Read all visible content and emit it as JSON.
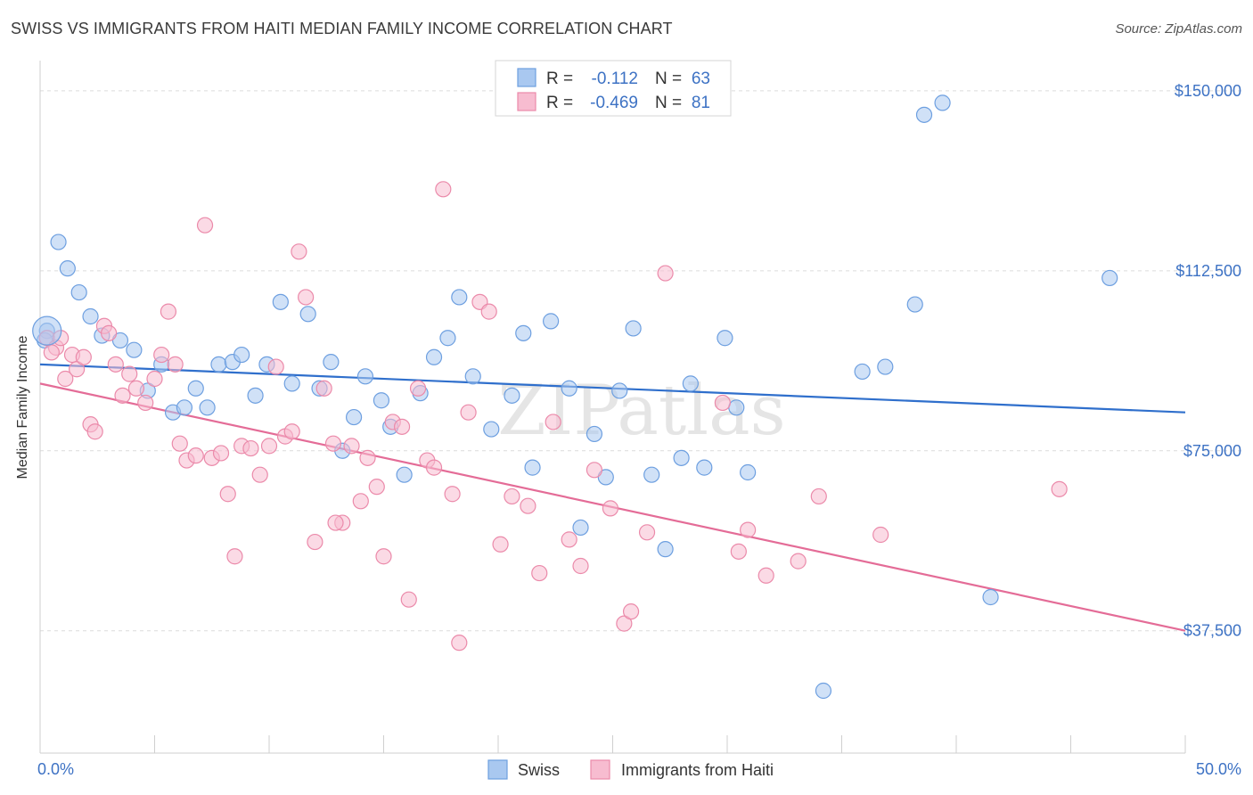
{
  "title": "SWISS VS IMMIGRANTS FROM HAITI MEDIAN FAMILY INCOME CORRELATION CHART",
  "source": "Source: ZipAtlas.com",
  "watermark": "ZIPatlas",
  "legend": {
    "rows": [
      {
        "r_label": "R =",
        "r_value": "-0.112",
        "n_label": "N =",
        "n_value": "63",
        "color": "#a9c8f0",
        "stroke": "#6d9fe0"
      },
      {
        "r_label": "R =",
        "r_value": "-0.469",
        "n_label": "N =",
        "n_value": "81",
        "color": "#f7bcd0",
        "stroke": "#eb8aaa"
      }
    ]
  },
  "bottom_legend": [
    {
      "label": "Swiss",
      "color": "#a9c8f0",
      "stroke": "#6d9fe0"
    },
    {
      "label": "Immigrants from Haiti",
      "color": "#f7bcd0",
      "stroke": "#eb8aaa"
    }
  ],
  "chart_data": {
    "type": "scatter",
    "title": "SWISS VS IMMIGRANTS FROM HAITI MEDIAN FAMILY INCOME CORRELATION CHART",
    "xlabel": "",
    "ylabel": "Median Family Income",
    "xlim": [
      0,
      50
    ],
    "ylim": [
      12000,
      155000
    ],
    "x_tick_labels": [
      "0.0%",
      "50.0%"
    ],
    "y_ticks": [
      37500,
      75000,
      112500,
      150000
    ],
    "y_tick_labels": [
      "$37,500",
      "$75,000",
      "$112,500",
      "$150,000"
    ],
    "grid": true,
    "series": [
      {
        "name": "Swiss",
        "color": "#a9c8f0",
        "stroke": "#6d9fe0",
        "line_color": "#2f6fcc",
        "trend": [
          [
            0,
            93000
          ],
          [
            50,
            83000
          ]
        ],
        "points": [
          [
            0.3,
            100000
          ],
          [
            0.8,
            118500
          ],
          [
            1.2,
            113000
          ],
          [
            1.7,
            108000
          ],
          [
            2.2,
            103000
          ],
          [
            2.7,
            99000
          ],
          [
            3.5,
            98000
          ],
          [
            4.1,
            96000
          ],
          [
            4.7,
            87500
          ],
          [
            5.3,
            93000
          ],
          [
            5.8,
            83000
          ],
          [
            6.3,
            84000
          ],
          [
            6.8,
            88000
          ],
          [
            7.3,
            84000
          ],
          [
            7.8,
            93000
          ],
          [
            8.4,
            93500
          ],
          [
            8.8,
            95000
          ],
          [
            9.4,
            86500
          ],
          [
            9.9,
            93000
          ],
          [
            10.5,
            106000
          ],
          [
            11.0,
            89000
          ],
          [
            11.7,
            103500
          ],
          [
            12.2,
            88000
          ],
          [
            12.7,
            93500
          ],
          [
            13.2,
            75000
          ],
          [
            13.7,
            82000
          ],
          [
            14.2,
            90500
          ],
          [
            14.9,
            85500
          ],
          [
            15.3,
            80000
          ],
          [
            15.9,
            70000
          ],
          [
            16.6,
            87000
          ],
          [
            17.2,
            94500
          ],
          [
            17.8,
            98500
          ],
          [
            18.3,
            107000
          ],
          [
            18.9,
            90500
          ],
          [
            19.7,
            79500
          ],
          [
            20.6,
            86500
          ],
          [
            21.1,
            99500
          ],
          [
            21.5,
            71500
          ],
          [
            22.3,
            102000
          ],
          [
            23.1,
            88000
          ],
          [
            23.6,
            59000
          ],
          [
            24.2,
            78500
          ],
          [
            24.7,
            69500
          ],
          [
            25.3,
            87500
          ],
          [
            25.9,
            100500
          ],
          [
            26.7,
            70000
          ],
          [
            27.3,
            54500
          ],
          [
            28.0,
            73500
          ],
          [
            28.4,
            89000
          ],
          [
            29.0,
            71500
          ],
          [
            29.9,
            98500
          ],
          [
            30.4,
            84000
          ],
          [
            30.9,
            70500
          ],
          [
            34.2,
            25000
          ],
          [
            35.9,
            91500
          ],
          [
            36.9,
            92500
          ],
          [
            38.2,
            105500
          ],
          [
            38.6,
            145000
          ],
          [
            39.4,
            147500
          ],
          [
            41.5,
            44500
          ],
          [
            46.7,
            111000
          ],
          [
            0.2,
            98000
          ]
        ]
      },
      {
        "name": "Immigrants from Haiti",
        "color": "#f7bcd0",
        "stroke": "#eb8aaa",
        "line_color": "#e46c97",
        "trend": [
          [
            0,
            89000
          ],
          [
            50,
            37500
          ]
        ],
        "points": [
          [
            0.3,
            98500
          ],
          [
            0.7,
            96500
          ],
          [
            0.9,
            98500
          ],
          [
            1.1,
            90000
          ],
          [
            1.4,
            95000
          ],
          [
            1.6,
            92000
          ],
          [
            1.9,
            94500
          ],
          [
            2.2,
            80500
          ],
          [
            2.4,
            79000
          ],
          [
            2.8,
            101000
          ],
          [
            3.0,
            99500
          ],
          [
            3.3,
            93000
          ],
          [
            3.6,
            86500
          ],
          [
            3.9,
            91000
          ],
          [
            4.2,
            88000
          ],
          [
            4.6,
            85000
          ],
          [
            5.0,
            90000
          ],
          [
            5.3,
            95000
          ],
          [
            5.6,
            104000
          ],
          [
            5.9,
            93000
          ],
          [
            6.1,
            76500
          ],
          [
            6.4,
            73000
          ],
          [
            6.8,
            74000
          ],
          [
            7.2,
            122000
          ],
          [
            7.5,
            73500
          ],
          [
            7.9,
            74500
          ],
          [
            8.2,
            66000
          ],
          [
            8.5,
            53000
          ],
          [
            8.8,
            76000
          ],
          [
            9.2,
            75500
          ],
          [
            9.6,
            70000
          ],
          [
            10.0,
            76000
          ],
          [
            10.3,
            92500
          ],
          [
            10.7,
            78000
          ],
          [
            11.0,
            79000
          ],
          [
            11.3,
            116500
          ],
          [
            11.6,
            107000
          ],
          [
            12.0,
            56000
          ],
          [
            12.4,
            88000
          ],
          [
            12.8,
            76500
          ],
          [
            13.2,
            60000
          ],
          [
            13.6,
            76000
          ],
          [
            14.0,
            64500
          ],
          [
            14.3,
            73500
          ],
          [
            14.7,
            67500
          ],
          [
            15.0,
            53000
          ],
          [
            15.4,
            81000
          ],
          [
            15.8,
            80000
          ],
          [
            16.1,
            44000
          ],
          [
            16.5,
            88000
          ],
          [
            16.9,
            73000
          ],
          [
            17.2,
            71500
          ],
          [
            17.6,
            129500
          ],
          [
            18.0,
            66000
          ],
          [
            18.3,
            35000
          ],
          [
            18.7,
            83000
          ],
          [
            19.2,
            106000
          ],
          [
            19.6,
            104000
          ],
          [
            20.1,
            55500
          ],
          [
            20.6,
            65500
          ],
          [
            21.3,
            63500
          ],
          [
            21.8,
            49500
          ],
          [
            22.4,
            81000
          ],
          [
            23.1,
            56500
          ],
          [
            23.6,
            51000
          ],
          [
            24.2,
            71000
          ],
          [
            24.9,
            63000
          ],
          [
            25.5,
            39000
          ],
          [
            25.8,
            41500
          ],
          [
            26.5,
            58000
          ],
          [
            27.3,
            112000
          ],
          [
            29.8,
            85000
          ],
          [
            30.5,
            54000
          ],
          [
            30.9,
            58500
          ],
          [
            31.7,
            49000
          ],
          [
            33.1,
            52000
          ],
          [
            34.0,
            65500
          ],
          [
            36.7,
            57500
          ],
          [
            44.5,
            67000
          ],
          [
            0.5,
            95500
          ],
          [
            12.9,
            60000
          ]
        ]
      }
    ]
  }
}
